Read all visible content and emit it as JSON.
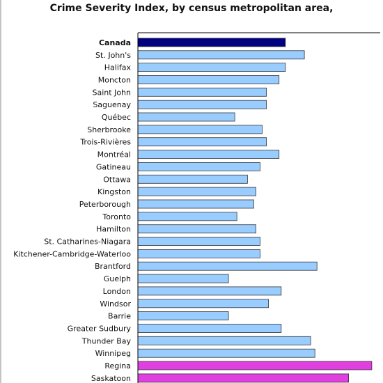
{
  "page": {
    "title": "Crime Severity Index, by census metropolitan area,"
  },
  "chart_data": {
    "type": "bar",
    "orientation": "horizontal",
    "title": "Crime Severity Index, by census metropolitan area,",
    "xlabel": "",
    "ylabel": "",
    "grid": false,
    "categories": [
      "Canada",
      "St. John's",
      "Halifax",
      "Moncton",
      "Saint John",
      "Saguenay",
      "Québec",
      "Sherbrooke",
      "Trois-Rivières",
      "Montréal",
      "Gatineau",
      "Ottawa",
      "Kingston",
      "Peterborough",
      "Toronto",
      "Hamilton",
      "St. Catharines-Niagara",
      "Kitchener-Cambridge-Waterloo",
      "Brantford",
      "Guelph",
      "London",
      "Windsor",
      "Barrie",
      "Greater Sudbury",
      "Thunder Bay",
      "Winnipeg",
      "Regina",
      "Saskatoon"
    ],
    "values": [
      70,
      79,
      70,
      67,
      61,
      61,
      46,
      59,
      61,
      67,
      58,
      52,
      56,
      55,
      47,
      56,
      58,
      58,
      85,
      43,
      68,
      62,
      43,
      68,
      82,
      84,
      111,
      100
    ],
    "xlim": [
      0,
      115
    ],
    "colors": {
      "canada": "#000080",
      "default": "#99ccff",
      "highlight": "#e040e0",
      "bar_border": "#333333",
      "axis": "#000000"
    },
    "bar_color_groups": [
      "canada",
      "default",
      "default",
      "default",
      "default",
      "default",
      "default",
      "default",
      "default",
      "default",
      "default",
      "default",
      "default",
      "default",
      "default",
      "default",
      "default",
      "default",
      "default",
      "default",
      "default",
      "default",
      "default",
      "default",
      "default",
      "default",
      "highlight",
      "highlight"
    ]
  }
}
